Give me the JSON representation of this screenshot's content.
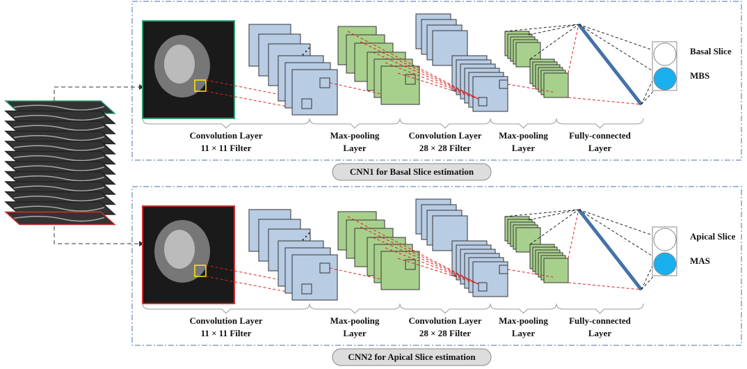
{
  "panels": [
    {
      "caption": "CNN1 for Basal Slice estimation",
      "layers": [
        [
          "Convolution Layer",
          "11 × 11 Filter"
        ],
        [
          "Max-pooling",
          "Layer"
        ],
        [
          "Convolution Layer",
          "28 × 28 Filter"
        ],
        [
          "Max-pooling",
          "Layer"
        ],
        [
          "Fully-connected",
          "Layer"
        ]
      ],
      "outputs": [
        "Basal Slice",
        "MBS"
      ]
    },
    {
      "caption": "CNN2 for Apical Slice estimation",
      "layers": [
        [
          "Convolution Layer",
          "11 × 11 Filter"
        ],
        [
          "Max-pooling",
          "Layer"
        ],
        [
          "Convolution Layer",
          "28 × 28 Filter"
        ],
        [
          "Max-pooling",
          "Layer"
        ],
        [
          "Fully-connected",
          "Layer"
        ]
      ],
      "outputs": [
        "Apical Slice",
        "MAS"
      ]
    }
  ]
}
